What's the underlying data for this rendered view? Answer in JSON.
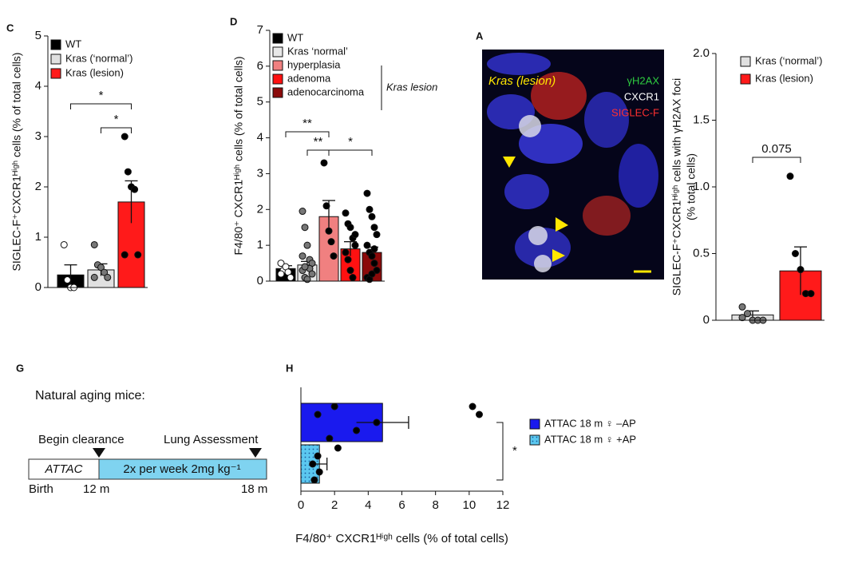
{
  "chart_data": [
    {
      "type": "bar",
      "panel": "C",
      "ylabel": "SIGLEC-F⁺CXCR1ᴴⁱᵍʰ cells (% of total cells)",
      "ylim": [
        0,
        5
      ],
      "yticks": [
        0,
        1,
        2,
        3,
        4,
        5
      ],
      "annotations": [
        "*",
        "*"
      ],
      "series": [
        {
          "name": "WT",
          "color": "#000000",
          "point_color": "#ffffff",
          "values": [
            0.25
          ],
          "errors": [
            0.2
          ],
          "points": [
            0.85,
            0.15,
            0.0,
            0.0
          ]
        },
        {
          "name": "Kras (‘normal’)",
          "color": "#e0e0e0",
          "point_color": "#777777",
          "values": [
            0.35
          ],
          "errors": [
            0.12
          ],
          "points": [
            0.85,
            0.45,
            0.4,
            0.3,
            0.2,
            0.2
          ]
        },
        {
          "name": "Kras (lesion)",
          "color": "#ff1a1a",
          "point_color": "#000000",
          "values": [
            1.7
          ],
          "errors": [
            0.42
          ],
          "points": [
            3.0,
            2.3,
            2.0,
            1.95,
            0.65,
            0.65
          ]
        }
      ]
    },
    {
      "type": "bar",
      "panel": "D",
      "ylabel": "F4/80⁺ CXCR1ᴴⁱᵍʰ cells (% of total cells)",
      "ylim": [
        0,
        7
      ],
      "yticks": [
        0,
        1,
        2,
        3,
        4,
        5,
        6,
        7
      ],
      "annotations": [
        "**",
        "**",
        "*"
      ],
      "group_label": "Kras lesion",
      "series": [
        {
          "name": "WT",
          "color": "#000000",
          "point_color": "#ffffff",
          "values": [
            0.35
          ],
          "errors": [
            0.08
          ],
          "points": [
            0.5,
            0.3,
            0.4,
            0.25,
            0.1,
            0.2
          ]
        },
        {
          "name": "Kras ‘normal’",
          "color": "#e8e8e8",
          "point_color": "#777777",
          "values": [
            0.45
          ],
          "errors": [
            0.1
          ],
          "points": [
            1.95,
            1.5,
            1.0,
            0.6,
            0.5,
            0.3,
            0.1,
            0.05,
            0.35,
            0.2,
            0.7,
            0.4
          ]
        },
        {
          "name": "hyperplasia",
          "color": "#f08080",
          "point_color": "#000000",
          "values": [
            1.8
          ],
          "errors": [
            0.45
          ],
          "points": [
            3.3,
            2.1,
            1.4,
            1.1,
            0.7
          ]
        },
        {
          "name": "adenoma",
          "color": "#ff1111",
          "point_color": "#000000",
          "values": [
            0.9
          ],
          "errors": [
            0.2
          ],
          "points": [
            1.9,
            1.6,
            1.5,
            1.2,
            1.0,
            0.8,
            0.6,
            0.3,
            0.1,
            1.3
          ]
        },
        {
          "name": "adenocarcinoma",
          "color": "#8b0a0a",
          "point_color": "#000000",
          "values": [
            0.8
          ],
          "errors": [
            0.15
          ],
          "points": [
            2.45,
            2.0,
            1.8,
            1.5,
            1.3,
            1.0,
            0.8,
            0.7,
            0.5,
            0.3,
            0.1,
            0.05,
            0.2,
            0.9
          ]
        }
      ]
    },
    {
      "type": "bar",
      "ylabel": [
        "SIGLEC-F⁺CXCR1ᴴⁱᵍʰ cells with γH2AX foci",
        "(% total cells)"
      ],
      "ylim": [
        0,
        2
      ],
      "yticks": [
        0,
        0.5,
        {
          "value": 1,
          "label": "1.0"
        },
        1.5,
        {
          "value": 2,
          "label": "2.0"
        }
      ],
      "annotations": [
        "0.075"
      ],
      "series": [
        {
          "name": "Kras (‘normal’)",
          "color": "#e0e0e0",
          "point_color": "#777777",
          "values": [
            0.04
          ],
          "errors": [
            0.03
          ],
          "points": [
            0.1,
            0.05,
            0.0,
            0.0,
            0.0,
            0.02
          ]
        },
        {
          "name": "Kras (lesion)",
          "color": "#ff1a1a",
          "point_color": "#000000",
          "values": [
            0.37
          ],
          "errors": [
            0.18
          ],
          "points": [
            1.08,
            0.5,
            0.38,
            0.2,
            0.2
          ]
        }
      ]
    },
    {
      "type": "hbar",
      "panel": "H",
      "xlabel": "F4/80⁺ CXCR1ᴴⁱᵍʰ cells (% of total cells)",
      "xlim": [
        0,
        12
      ],
      "xticks": [
        0,
        2,
        4,
        6,
        8,
        10,
        12
      ],
      "annotations": [
        "*"
      ],
      "series": [
        {
          "name": "ATTAC 18 m ♀ –AP",
          "color": "#1a1aee",
          "point_color": "#000000",
          "values": [
            4.85
          ],
          "errors": [
            1.55
          ],
          "points": [
            10.2,
            10.6,
            4.5,
            3.3,
            1.7,
            2.0,
            1.0
          ]
        },
        {
          "name": "ATTAC 18 m ♀ +AP",
          "color": "#5bc8f0",
          "point_color": "#000000",
          "values": [
            1.1
          ],
          "errors": [
            0.45
          ],
          "points": [
            2.2,
            1.0,
            0.7,
            1.1,
            0.8
          ]
        }
      ]
    }
  ],
  "image": {
    "panel": "A",
    "label": "Kras (lesion)",
    "channels": [
      "γH2AX",
      "CXCR1",
      "SIGLEC-F"
    ]
  },
  "diagram": {
    "panel": "G",
    "title": "Natural aging mice:",
    "events": [
      "Begin clearance",
      "Lung Assessment"
    ],
    "bar": [
      "ATTAC",
      "2x per week 2mg kg⁻¹"
    ],
    "timepoints": [
      "Birth",
      "12 m",
      "18 m"
    ]
  }
}
